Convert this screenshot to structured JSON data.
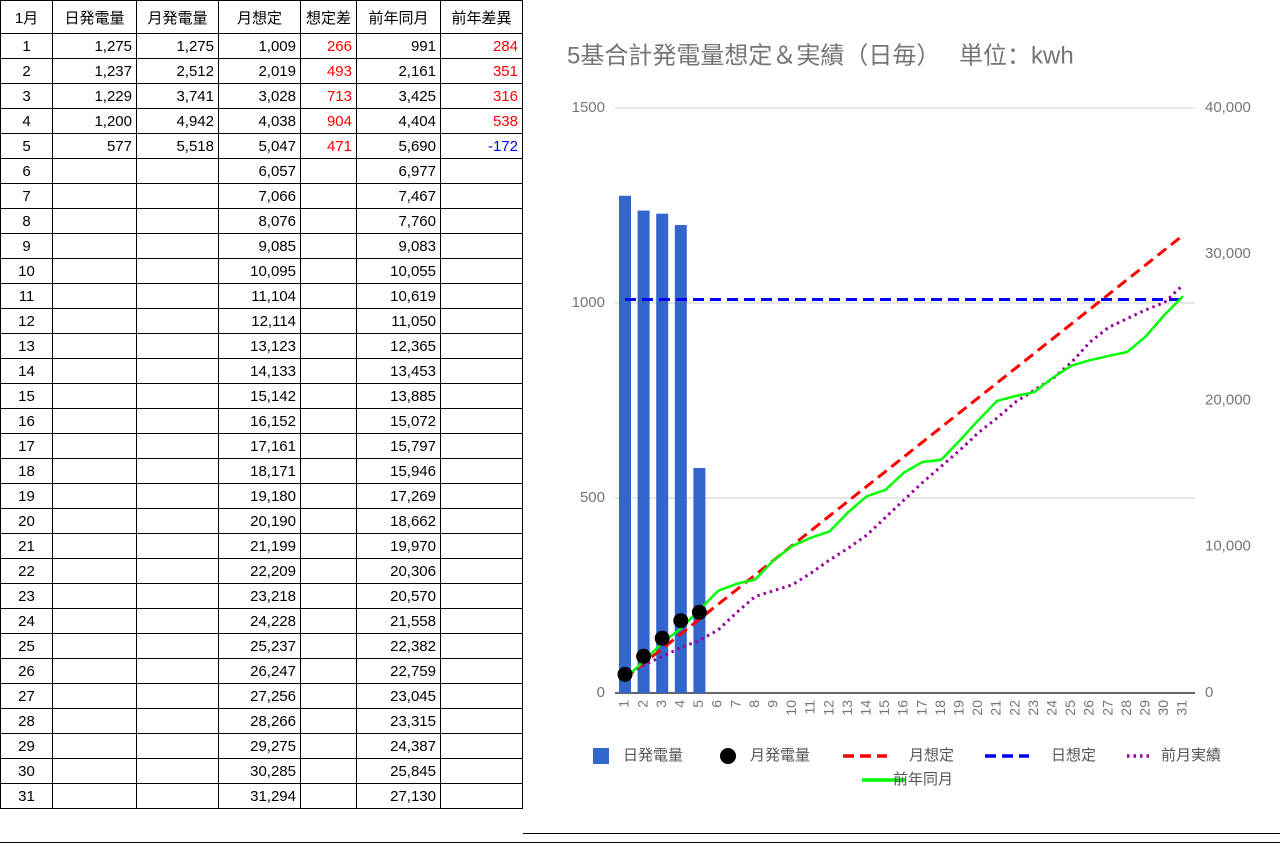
{
  "table": {
    "header": [
      "1月",
      "日発電量",
      "月発電量",
      "月想定",
      "想定差",
      "前年同月",
      "前年差異"
    ],
    "colored_columns": [
      4,
      6
    ],
    "positive_color": "#ff0000",
    "negative_color": "#0000ff",
    "rows": [
      [
        "1",
        "1,275",
        "1,275",
        "1,009",
        "266",
        "991",
        "284"
      ],
      [
        "2",
        "1,237",
        "2,512",
        "2,019",
        "493",
        "2,161",
        "351"
      ],
      [
        "3",
        "1,229",
        "3,741",
        "3,028",
        "713",
        "3,425",
        "316"
      ],
      [
        "4",
        "1,200",
        "4,942",
        "4,038",
        "904",
        "4,404",
        "538"
      ],
      [
        "5",
        "577",
        "5,518",
        "5,047",
        "471",
        "5,690",
        "-172"
      ],
      [
        "6",
        null,
        null,
        "6,057",
        null,
        "6,977",
        null
      ],
      [
        "7",
        null,
        null,
        "7,066",
        null,
        "7,467",
        null
      ],
      [
        "8",
        null,
        null,
        "8,076",
        null,
        "7,760",
        null
      ],
      [
        "9",
        null,
        null,
        "9,085",
        null,
        "9,083",
        null
      ],
      [
        "10",
        null,
        null,
        "10,095",
        null,
        "10,055",
        null
      ],
      [
        "11",
        null,
        null,
        "11,104",
        null,
        "10,619",
        null
      ],
      [
        "12",
        null,
        null,
        "12,114",
        null,
        "11,050",
        null
      ],
      [
        "13",
        null,
        null,
        "13,123",
        null,
        "12,365",
        null
      ],
      [
        "14",
        null,
        null,
        "14,133",
        null,
        "13,453",
        null
      ],
      [
        "15",
        null,
        null,
        "15,142",
        null,
        "13,885",
        null
      ],
      [
        "16",
        null,
        null,
        "16,152",
        null,
        "15,072",
        null
      ],
      [
        "17",
        null,
        null,
        "17,161",
        null,
        "15,797",
        null
      ],
      [
        "18",
        null,
        null,
        "18,171",
        null,
        "15,946",
        null
      ],
      [
        "19",
        null,
        null,
        "19,180",
        null,
        "17,269",
        null
      ],
      [
        "20",
        null,
        null,
        "20,190",
        null,
        "18,662",
        null
      ],
      [
        "21",
        null,
        null,
        "21,199",
        null,
        "19,970",
        null
      ],
      [
        "22",
        null,
        null,
        "22,209",
        null,
        "20,306",
        null
      ],
      [
        "23",
        null,
        null,
        "23,218",
        null,
        "20,570",
        null
      ],
      [
        "24",
        null,
        null,
        "24,228",
        null,
        "21,558",
        null
      ],
      [
        "25",
        null,
        null,
        "25,237",
        null,
        "22,382",
        null
      ],
      [
        "26",
        null,
        null,
        "26,247",
        null,
        "22,759",
        null
      ],
      [
        "27",
        null,
        null,
        "27,256",
        null,
        "23,045",
        null
      ],
      [
        "28",
        null,
        null,
        "28,266",
        null,
        "23,315",
        null
      ],
      [
        "29",
        null,
        null,
        "29,275",
        null,
        "24,387",
        null
      ],
      [
        "30",
        null,
        null,
        "30,285",
        null,
        "25,845",
        null
      ],
      [
        "31",
        null,
        null,
        "31,294",
        null,
        "27,130",
        null
      ]
    ]
  },
  "chart_data": {
    "type": "combo",
    "title": "5基合計発電量想定＆実績（日毎）　 単位：kwh",
    "categories": [
      "1",
      "2",
      "3",
      "4",
      "5",
      "6",
      "7",
      "8",
      "9",
      "10",
      "11",
      "12",
      "13",
      "14",
      "15",
      "16",
      "17",
      "18",
      "19",
      "20",
      "21",
      "22",
      "23",
      "24",
      "25",
      "26",
      "27",
      "28",
      "29",
      "30",
      "31"
    ],
    "ylim": [
      0,
      1500
    ],
    "yticks": [
      0,
      500,
      1000,
      1500
    ],
    "y2lim": [
      0,
      40000
    ],
    "y2ticks": [
      0,
      {
        "value": 10000,
        "label": "10,000"
      },
      {
        "value": 20000,
        "label": "20,000"
      },
      {
        "value": 30000,
        "label": "30,000"
      },
      {
        "value": 40000,
        "label": "40,000"
      }
    ],
    "grid": true,
    "legend": "bottom",
    "series": [
      {
        "name": "日発電量",
        "style": "bar",
        "color": "#3366cc",
        "values": [
          1275,
          1237,
          1229,
          1200,
          577,
          null,
          null,
          null,
          null,
          null,
          null,
          null,
          null,
          null,
          null,
          null,
          null,
          null,
          null,
          null,
          null,
          null,
          null,
          null,
          null,
          null,
          null,
          null,
          null,
          null,
          null
        ]
      },
      {
        "name": "月発電量",
        "style": "dot",
        "color": "#000000",
        "axis": "y2",
        "values": [
          1275,
          2512,
          3741,
          4942,
          5518,
          null,
          null,
          null,
          null,
          null,
          null,
          null,
          null,
          null,
          null,
          null,
          null,
          null,
          null,
          null,
          null,
          null,
          null,
          null,
          null,
          null,
          null,
          null,
          null,
          null,
          null
        ]
      },
      {
        "name": "月想定",
        "style": "dashed",
        "color": "#ff0000",
        "axis": "y2",
        "values": [
          1009,
          2019,
          3028,
          4038,
          5047,
          6057,
          7066,
          8076,
          9085,
          10095,
          11104,
          12114,
          13123,
          14133,
          15142,
          16152,
          17161,
          18171,
          19180,
          20190,
          21199,
          22209,
          23218,
          24228,
          25237,
          26247,
          27256,
          28266,
          29275,
          30285,
          31294
        ]
      },
      {
        "name": "日想定",
        "style": "dashed",
        "color": "#0000ff",
        "values": [
          1009,
          1009,
          1009,
          1009,
          1009,
          1009,
          1009,
          1009,
          1009,
          1009,
          1009,
          1009,
          1009,
          1009,
          1009,
          1009,
          1009,
          1009,
          1009,
          1009,
          1009,
          1009,
          1009,
          1009,
          1009,
          1009,
          1009,
          1009,
          1009,
          1009,
          1009
        ]
      },
      {
        "name": "前月実績",
        "style": "dotted",
        "color": "#990099",
        "axis": "y2",
        "values": [
          1200,
          1900,
          2500,
          3100,
          3600,
          4300,
          5500,
          6600,
          7000,
          7400,
          8200,
          9100,
          9900,
          10800,
          12000,
          13200,
          14400,
          15500,
          16600,
          17800,
          18800,
          19900,
          20700,
          21500,
          22600,
          24000,
          25000,
          25600,
          26200,
          26700,
          27900
        ]
      },
      {
        "name": "前年同月",
        "style": "solid",
        "color": "#00ff00",
        "axis": "y2",
        "values": [
          991,
          2161,
          3425,
          4404,
          5690,
          6977,
          7467,
          7760,
          9083,
          10055,
          10619,
          11050,
          12365,
          13453,
          13885,
          15072,
          15797,
          15946,
          17269,
          18662,
          19970,
          20306,
          20570,
          21558,
          22382,
          22759,
          23045,
          23315,
          24387,
          25845,
          27130
        ]
      }
    ]
  }
}
